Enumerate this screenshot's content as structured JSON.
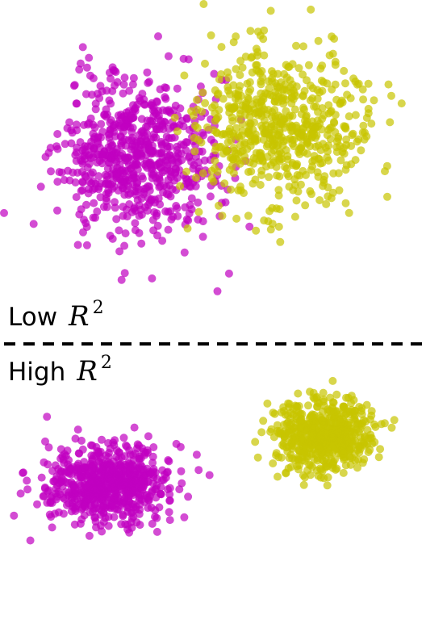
{
  "labels": {
    "low": {
      "word": "Low",
      "symbol": "R",
      "exponent": "2"
    },
    "high": {
      "word": "High",
      "symbol": "R",
      "exponent": "2"
    }
  },
  "chart_data": [
    {
      "type": "scatter",
      "panel": "low",
      "grid": false,
      "axes_visible": false,
      "point_alpha": 0.7,
      "series": [
        {
          "color": "#c000c0",
          "center": [
            170,
            195
          ],
          "spread": [
            48,
            48
          ],
          "n": 700,
          "seed": 11
        },
        {
          "color": "#c8c400",
          "center": [
            345,
            160
          ],
          "spread": [
            52,
            48
          ],
          "n": 620,
          "seed": 29
        }
      ]
    },
    {
      "type": "scatter",
      "panel": "high",
      "grid": false,
      "axes_visible": false,
      "point_alpha": 0.7,
      "series": [
        {
          "color": "#c000c0",
          "center": [
            135,
            600
          ],
          "spread": [
            38,
            25
          ],
          "n": 650,
          "seed": 41
        },
        {
          "color": "#c8c400",
          "center": [
            400,
            540
          ],
          "spread": [
            30,
            22
          ],
          "n": 560,
          "seed": 57
        }
      ]
    }
  ]
}
